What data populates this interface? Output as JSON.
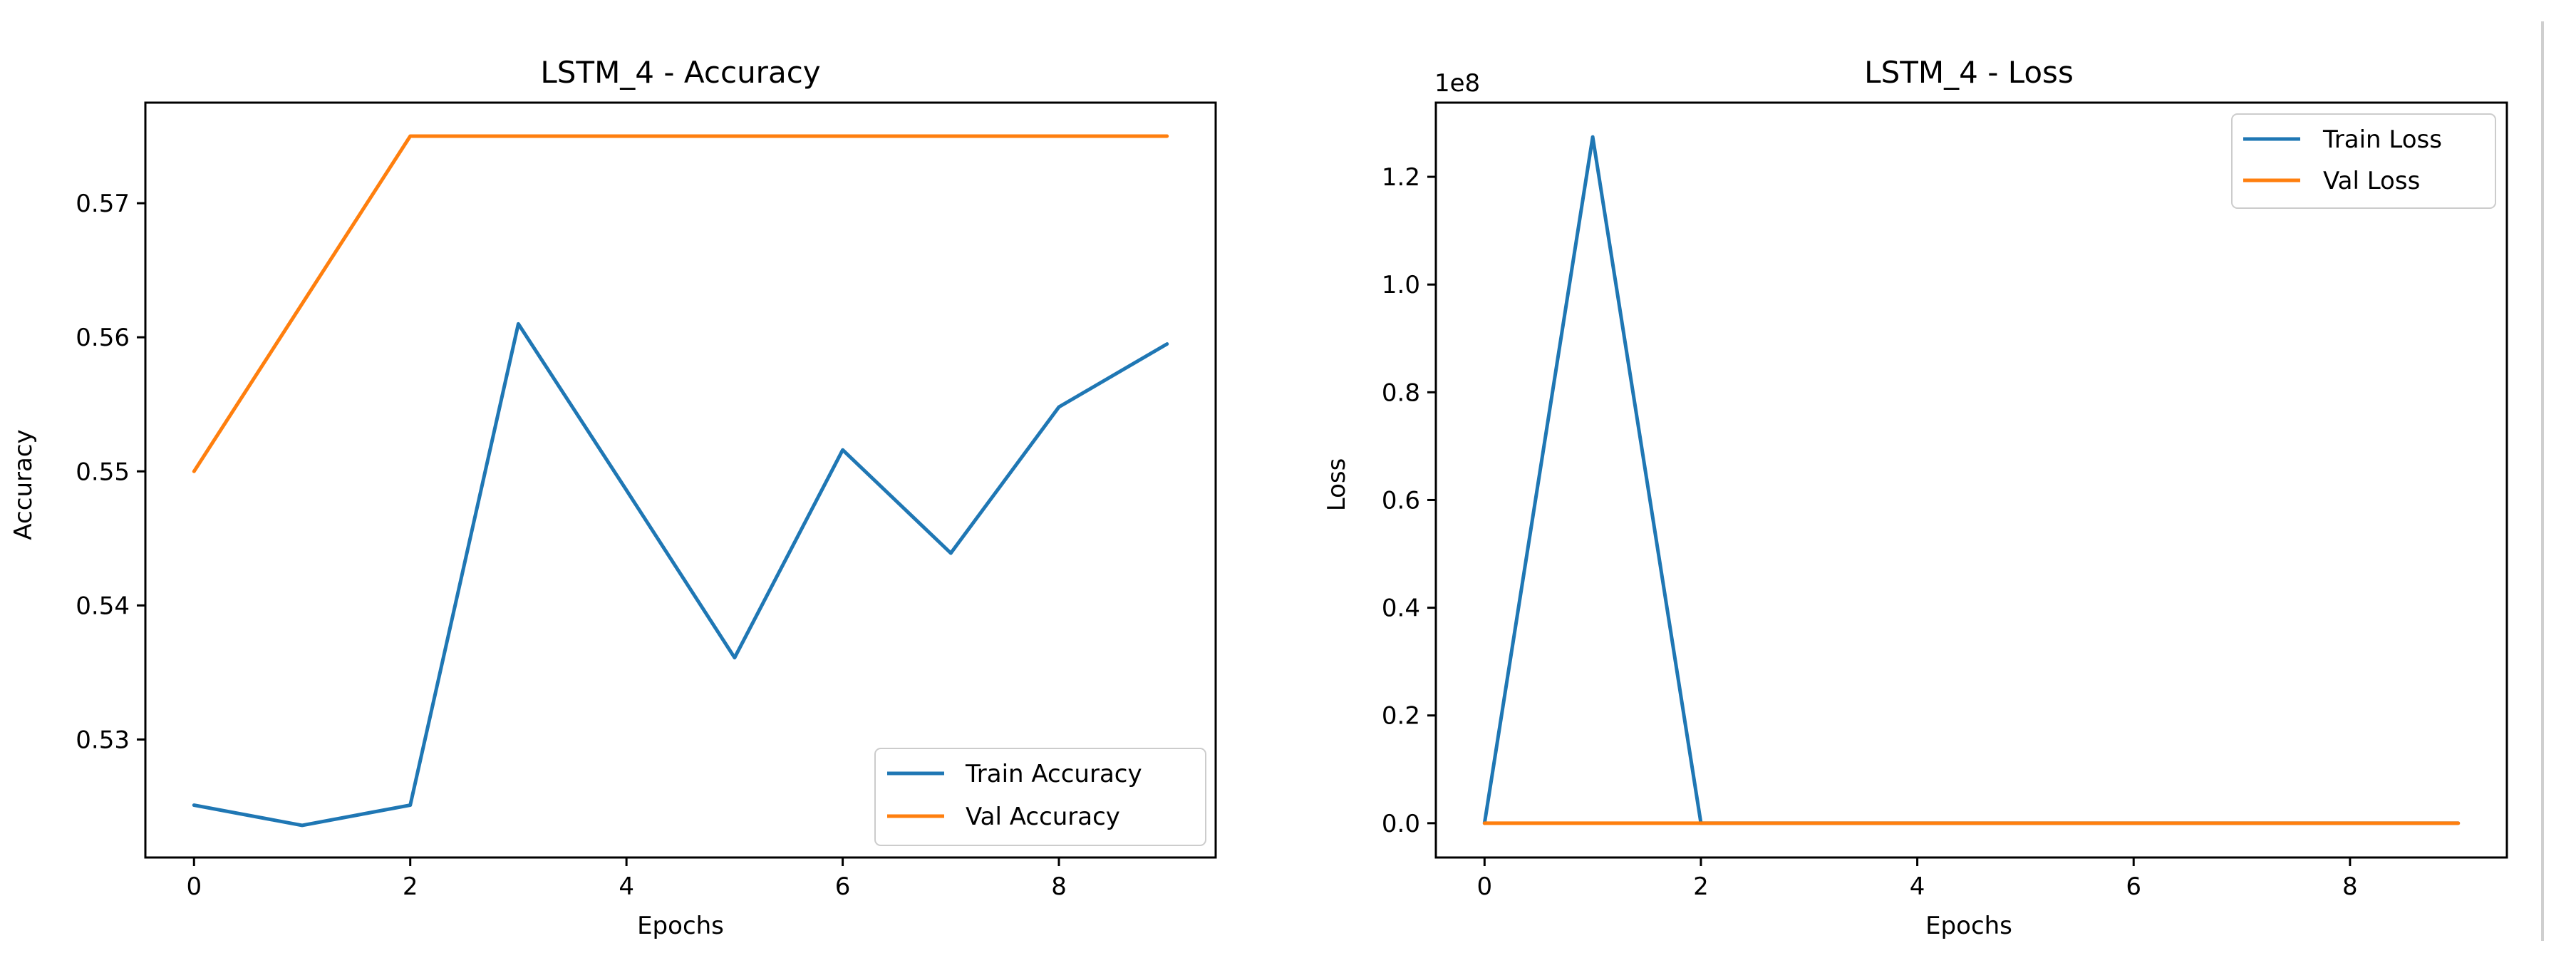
{
  "chart_data": [
    {
      "type": "line",
      "title": "LSTM_4 - Accuracy",
      "xlabel": "Epochs",
      "ylabel": "Accuracy",
      "x": [
        0,
        1,
        2,
        3,
        4,
        5,
        6,
        7,
        8,
        9
      ],
      "xlim": [
        -0.45,
        9.45
      ],
      "ylim": [
        0.5212,
        0.5775
      ],
      "xticks": [
        "0",
        "2",
        "4",
        "6",
        "8"
      ],
      "yticks": [
        "0.53",
        "0.54",
        "0.55",
        "0.56",
        "0.57"
      ],
      "grid": false,
      "legend_position": "lower-right",
      "series": [
        {
          "name": "Train Accuracy",
          "color": "#1f77b4",
          "values": [
            0.5251,
            0.5236,
            0.5251,
            0.561,
            0.5486,
            0.5361,
            0.5516,
            0.5439,
            0.5548,
            0.5595
          ]
        },
        {
          "name": "Val Accuracy",
          "color": "#ff7f0e",
          "values": [
            0.55,
            0.5625,
            0.575,
            0.575,
            0.575,
            0.575,
            0.575,
            0.575,
            0.575,
            0.575
          ]
        }
      ]
    },
    {
      "type": "line",
      "title": "LSTM_4 - Loss",
      "xlabel": "Epochs",
      "ylabel": "Loss",
      "offset_label": "1e8",
      "x": [
        0,
        1,
        2,
        3,
        4,
        5,
        6,
        7,
        8,
        9
      ],
      "xlim": [
        -0.45,
        9.45
      ],
      "ylim": [
        -0.0637,
        1.3377
      ],
      "xticks": [
        "0",
        "2",
        "4",
        "6",
        "8"
      ],
      "yticks": [
        "0.0",
        "0.2",
        "0.4",
        "0.6",
        "0.8",
        "1.0",
        "1.2"
      ],
      "grid": false,
      "legend_position": "upper-right",
      "series": [
        {
          "name": "Train Loss",
          "color": "#1f77b4",
          "values": [
            0.0,
            1.274,
            0.0,
            0.0,
            0.0,
            0.0,
            0.0,
            0.0,
            0.0,
            0.0
          ]
        },
        {
          "name": "Val Loss",
          "color": "#ff7f0e",
          "values": [
            0.0,
            0.0,
            0.0,
            0.0,
            0.0,
            0.0,
            0.0,
            0.0,
            0.0,
            0.0
          ]
        }
      ]
    }
  ]
}
